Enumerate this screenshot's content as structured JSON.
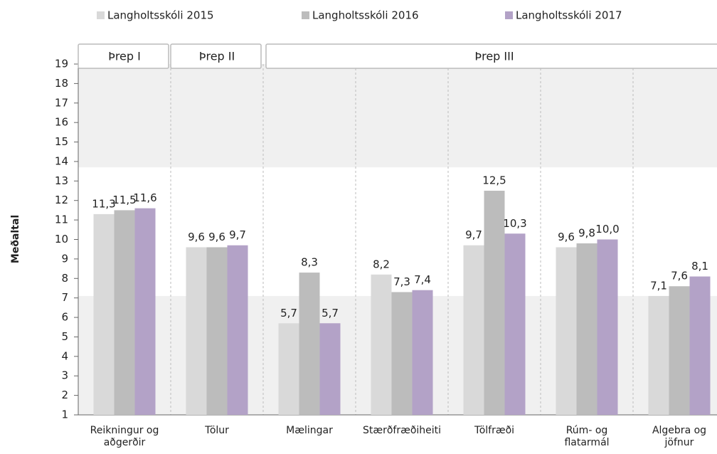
{
  "chart_data": {
    "type": "bar",
    "y_label": "Meðaltal",
    "categories": [
      "Reikningur og\naðgerðir",
      "Tölur",
      "Mælingar",
      "Stærðfræðiheiti",
      "Tölfræði",
      "Rúm- og\nflatarmál",
      "Algebra og\njöfnur"
    ],
    "groups": [
      {
        "label": "Þrep I",
        "span": 1
      },
      {
        "label": "Þrep II",
        "span": 1
      },
      {
        "label": "Þrep III",
        "span": 5
      }
    ],
    "series": [
      {
        "name": "Langholtsskóli 2015",
        "color": "#d9d9d9",
        "values": [
          11.3,
          9.6,
          5.7,
          8.2,
          9.7,
          9.6,
          7.1
        ],
        "value_labels": [
          "11,3",
          "9,6",
          "5,7",
          "8,2",
          "9,7",
          "9,6",
          "7,1"
        ]
      },
      {
        "name": "Langholtsskóli 2016",
        "color": "#bcbcbc",
        "values": [
          11.5,
          9.6,
          8.3,
          7.3,
          12.5,
          9.8,
          7.6
        ],
        "value_labels": [
          "11,5",
          "9,6",
          "8,3",
          "7,3",
          "12,5",
          "9,8",
          "7,6"
        ]
      },
      {
        "name": "Langholtsskóli 2017",
        "color": "#b3a2c7",
        "values": [
          11.6,
          9.7,
          5.7,
          7.4,
          10.3,
          10.0,
          8.1
        ],
        "value_labels": [
          "11,6",
          "9,7",
          "5,7",
          "7,4",
          "10,3",
          "10,0",
          "8,1"
        ]
      }
    ],
    "bands": [
      [
        1,
        7.1
      ],
      [
        13.7,
        19
      ]
    ],
    "band_color": "#f0f0f0",
    "ylim": [
      1,
      19
    ],
    "yticks": [
      1,
      2,
      3,
      4,
      5,
      6,
      7,
      8,
      9,
      10,
      11,
      12,
      13,
      14,
      15,
      16,
      17,
      18,
      19
    ]
  }
}
